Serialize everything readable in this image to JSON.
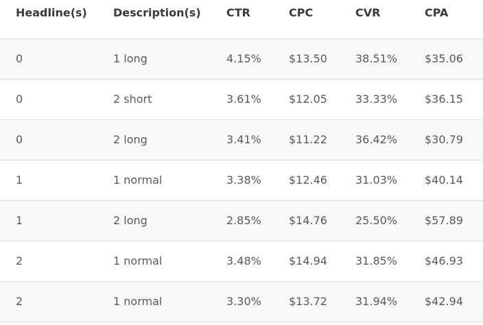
{
  "table": {
    "headers": [
      "Headline(s)",
      "Description(s)",
      "CTR",
      "CPC",
      "CVR",
      "CPA"
    ],
    "rows": [
      [
        "0",
        "1 long",
        "4.15%",
        "$13.50",
        "38.51%",
        "$35.06"
      ],
      [
        "0",
        "2 short",
        "3.61%",
        "$12.05",
        "33.33%",
        "$36.15"
      ],
      [
        "0",
        "2 long",
        "3.41%",
        "$11.22",
        "36.42%",
        "$30.79"
      ],
      [
        "1",
        "1 normal",
        "3.38%",
        "$12.46",
        "31.03%",
        "$40.14"
      ],
      [
        "1",
        "2 long",
        "2.85%",
        "$14.76",
        "25.50%",
        "$57.89"
      ],
      [
        "2",
        "1 normal",
        "3.48%",
        "$14.94",
        "31.85%",
        "$46.93"
      ],
      [
        "2",
        "1 normal",
        "3.30%",
        "$13.72",
        "31.94%",
        "$42.94"
      ]
    ]
  }
}
